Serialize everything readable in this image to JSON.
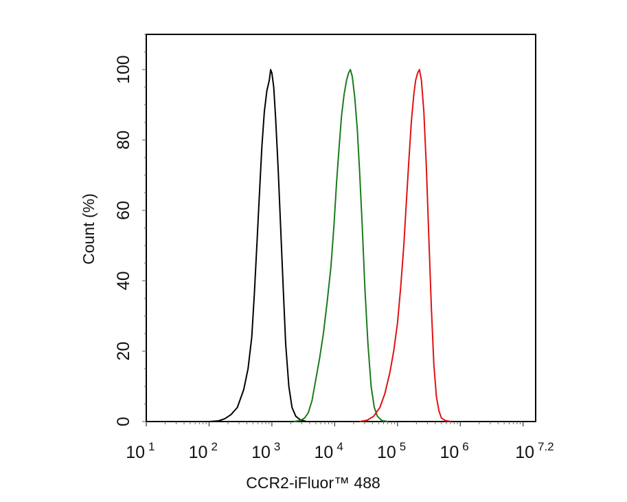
{
  "chart_data": {
    "type": "line",
    "xlabel": "CCR2-iFluor™ 488",
    "ylabel": "Count  (%)",
    "x_scale": "log",
    "x_range_log10": [
      1,
      7.2
    ],
    "ylim": [
      0,
      110
    ],
    "x_ticks": [
      {
        "base": "10",
        "exp": "1"
      },
      {
        "base": "10",
        "exp": "2"
      },
      {
        "base": "10",
        "exp": "3"
      },
      {
        "base": "10",
        "exp": "4"
      },
      {
        "base": "10",
        "exp": "5"
      },
      {
        "base": "10",
        "exp": "6"
      },
      {
        "base": "10",
        "exp": "7.2"
      }
    ],
    "y_ticks": [
      "0",
      "20",
      "40",
      "60",
      "80",
      "100"
    ],
    "grid": false,
    "legend": "none",
    "series": [
      {
        "color": "#000000",
        "points": [
          [
            2.0,
            0
          ],
          [
            2.15,
            0.2
          ],
          [
            2.25,
            0.8
          ],
          [
            2.35,
            2
          ],
          [
            2.45,
            4
          ],
          [
            2.55,
            9
          ],
          [
            2.62,
            15
          ],
          [
            2.68,
            24
          ],
          [
            2.72,
            36
          ],
          [
            2.76,
            50
          ],
          [
            2.8,
            64
          ],
          [
            2.84,
            78
          ],
          [
            2.88,
            88
          ],
          [
            2.92,
            94
          ],
          [
            2.96,
            97
          ],
          [
            2.98,
            100
          ],
          [
            3.0,
            99
          ],
          [
            3.03,
            95
          ],
          [
            3.06,
            86
          ],
          [
            3.1,
            72
          ],
          [
            3.14,
            55
          ],
          [
            3.18,
            38
          ],
          [
            3.22,
            22
          ],
          [
            3.27,
            10
          ],
          [
            3.32,
            4
          ],
          [
            3.38,
            1.5
          ],
          [
            3.45,
            0.5
          ],
          [
            3.55,
            0
          ]
        ]
      },
      {
        "color": "#1a7a1a",
        "points": [
          [
            3.35,
            0
          ],
          [
            3.45,
            0.3
          ],
          [
            3.52,
            1
          ],
          [
            3.58,
            2.5
          ],
          [
            3.64,
            6
          ],
          [
            3.7,
            12
          ],
          [
            3.76,
            18
          ],
          [
            3.82,
            25
          ],
          [
            3.88,
            34
          ],
          [
            3.94,
            44
          ],
          [
            3.99,
            56
          ],
          [
            4.03,
            68
          ],
          [
            4.07,
            78
          ],
          [
            4.11,
            87
          ],
          [
            4.15,
            93
          ],
          [
            4.19,
            97
          ],
          [
            4.22,
            99
          ],
          [
            4.25,
            100
          ],
          [
            4.28,
            98
          ],
          [
            4.32,
            92
          ],
          [
            4.36,
            83
          ],
          [
            4.4,
            70
          ],
          [
            4.44,
            55
          ],
          [
            4.48,
            38
          ],
          [
            4.53,
            22
          ],
          [
            4.58,
            10
          ],
          [
            4.63,
            4
          ],
          [
            4.68,
            1.5
          ],
          [
            4.75,
            0.3
          ],
          [
            4.85,
            0
          ]
        ]
      },
      {
        "color": "#e01010",
        "points": [
          [
            4.4,
            0
          ],
          [
            4.52,
            0.4
          ],
          [
            4.62,
            1.5
          ],
          [
            4.72,
            4
          ],
          [
            4.8,
            8
          ],
          [
            4.88,
            14
          ],
          [
            4.94,
            20
          ],
          [
            5.0,
            28
          ],
          [
            5.05,
            38
          ],
          [
            5.1,
            50
          ],
          [
            5.14,
            62
          ],
          [
            5.18,
            74
          ],
          [
            5.22,
            85
          ],
          [
            5.26,
            93
          ],
          [
            5.29,
            97
          ],
          [
            5.32,
            99
          ],
          [
            5.35,
            100
          ],
          [
            5.38,
            97
          ],
          [
            5.42,
            88
          ],
          [
            5.46,
            72
          ],
          [
            5.5,
            52
          ],
          [
            5.54,
            32
          ],
          [
            5.58,
            16
          ],
          [
            5.62,
            7
          ],
          [
            5.66,
            3
          ],
          [
            5.7,
            1
          ],
          [
            5.76,
            0.3
          ],
          [
            5.85,
            0
          ]
        ]
      }
    ]
  }
}
